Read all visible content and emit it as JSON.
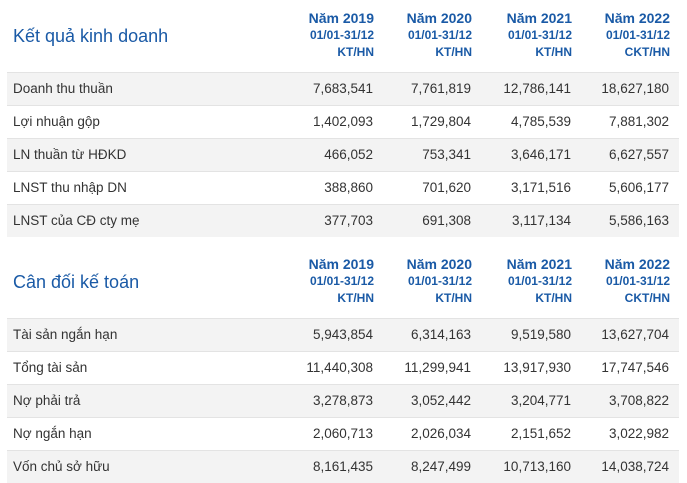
{
  "sections": [
    {
      "title": "Kết quả kinh doanh",
      "columns": [
        {
          "year": "Năm 2019",
          "period": "01/01-31/12",
          "type": "KT/HN"
        },
        {
          "year": "Năm 2020",
          "period": "01/01-31/12",
          "type": "KT/HN"
        },
        {
          "year": "Năm 2021",
          "period": "01/01-31/12",
          "type": "KT/HN"
        },
        {
          "year": "Năm 2022",
          "period": "01/01-31/12",
          "type": "CKT/HN"
        }
      ],
      "rows": [
        {
          "label": "Doanh thu thuần",
          "values": [
            "7,683,541",
            "7,761,819",
            "12,786,141",
            "18,627,180"
          ]
        },
        {
          "label": "Lợi nhuận gộp",
          "values": [
            "1,402,093",
            "1,729,804",
            "4,785,539",
            "7,881,302"
          ]
        },
        {
          "label": "LN thuần từ HĐKD",
          "values": [
            "466,052",
            "753,341",
            "3,646,171",
            "6,627,557"
          ]
        },
        {
          "label": "LNST thu nhập DN",
          "values": [
            "388,860",
            "701,620",
            "3,171,516",
            "5,606,177"
          ]
        },
        {
          "label": "LNST của CĐ cty mẹ",
          "values": [
            "377,703",
            "691,308",
            "3,117,134",
            "5,586,163"
          ]
        }
      ]
    },
    {
      "title": "Cân đối kế toán",
      "columns": [
        {
          "year": "Năm 2019",
          "period": "01/01-31/12",
          "type": "KT/HN"
        },
        {
          "year": "Năm 2020",
          "period": "01/01-31/12",
          "type": "KT/HN"
        },
        {
          "year": "Năm 2021",
          "period": "01/01-31/12",
          "type": "KT/HN"
        },
        {
          "year": "Năm 2022",
          "period": "01/01-31/12",
          "type": "CKT/HN"
        }
      ],
      "rows": [
        {
          "label": "Tài sản ngắn hạn",
          "values": [
            "5,943,854",
            "6,314,163",
            "9,519,580",
            "13,627,704"
          ]
        },
        {
          "label": "Tổng tài sản",
          "values": [
            "11,440,308",
            "11,299,941",
            "13,917,930",
            "17,747,546"
          ]
        },
        {
          "label": "Nợ phải trả",
          "values": [
            "3,278,873",
            "3,052,442",
            "3,204,771",
            "3,708,822"
          ]
        },
        {
          "label": "Nợ ngắn hạn",
          "values": [
            "2,060,713",
            "2,026,034",
            "2,151,652",
            "3,022,982"
          ]
        },
        {
          "label": "Vốn chủ sở hữu",
          "values": [
            "8,161,435",
            "8,247,499",
            "10,713,160",
            "14,038,724"
          ]
        }
      ]
    }
  ],
  "colors": {
    "accent": "#1a5aa6",
    "stripe": "#f3f3f3",
    "text": "#333333",
    "divider": "#e3e3e3"
  }
}
